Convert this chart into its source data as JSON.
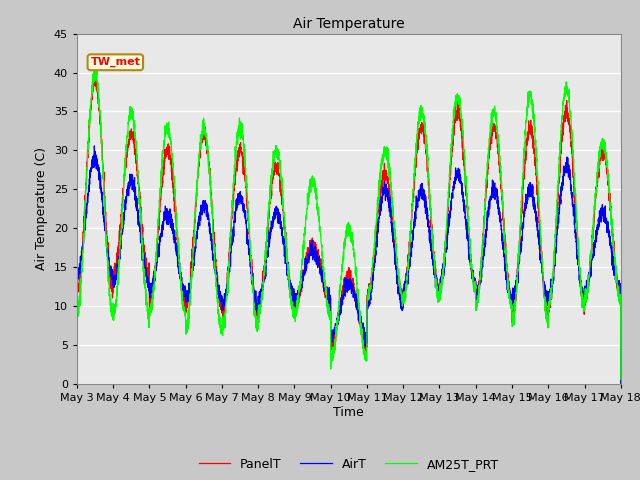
{
  "title": "Air Temperature",
  "xlabel": "Time",
  "ylabel": "Air Temperature (C)",
  "ylim": [
    0,
    45
  ],
  "annotation_text": "TW_met",
  "legend_labels": [
    "PanelT",
    "AirT",
    "AM25T_PRT"
  ],
  "line_colors": [
    "red",
    "blue",
    "#00ff00"
  ],
  "fig_bg_color": "#c8c8c8",
  "axes_bg_color": "#e8e8e8",
  "grid_color": "white",
  "tick_labels": [
    "May 3",
    "May 4",
    "May 5",
    "May 6",
    "May 7",
    "May 8",
    "May 9",
    "May 10",
    "May 11",
    "May 12",
    "May 13",
    "May 14",
    "May 15",
    "May 16",
    "May 17",
    "May 18"
  ],
  "yticks": [
    0,
    5,
    10,
    15,
    20,
    25,
    30,
    35,
    40,
    45
  ],
  "n_points": 3600,
  "duration_days": 15,
  "day_max_panel": [
    39,
    32,
    30,
    32,
    30,
    28,
    18,
    14,
    27,
    33,
    35,
    33,
    33,
    35,
    30
  ],
  "day_min_panel": [
    12,
    14,
    10,
    10,
    9,
    10,
    10,
    5,
    11,
    12,
    12,
    11,
    9,
    10,
    11
  ],
  "day_max_air": [
    29,
    26,
    22,
    23,
    24,
    22,
    17,
    13,
    25,
    25,
    27,
    25,
    25,
    28,
    22
  ],
  "day_min_air": [
    14,
    13,
    12,
    11,
    10,
    11,
    11,
    6,
    10,
    12,
    13,
    11,
    11,
    11,
    12
  ],
  "day_max_am25": [
    40,
    35,
    33,
    33,
    33,
    30,
    26,
    20,
    30,
    35,
    37,
    35,
    37,
    38,
    31
  ],
  "day_min_am25": [
    9,
    9,
    9,
    7,
    7,
    9,
    9,
    3,
    11,
    11,
    12,
    10,
    8,
    10,
    11
  ]
}
